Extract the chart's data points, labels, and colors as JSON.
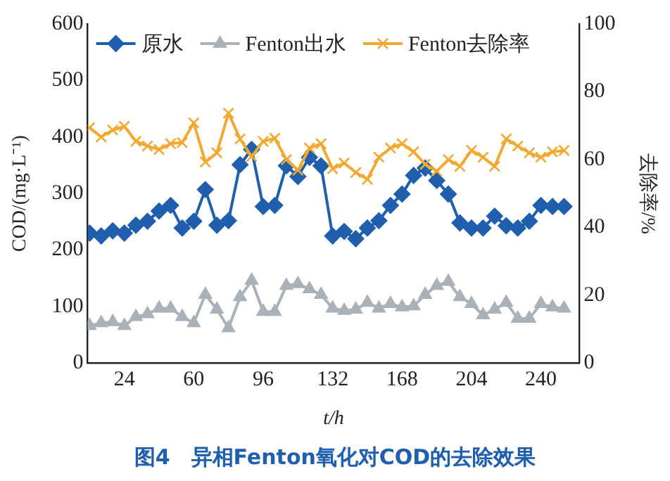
{
  "chart_data": {
    "type": "line",
    "xlabel": "t/h",
    "ylabel": "COD/(mg·L⁻¹)",
    "y2label": "去除率/%",
    "x": [
      6,
      12,
      18,
      24,
      30,
      36,
      42,
      48,
      54,
      60,
      66,
      72,
      78,
      84,
      90,
      96,
      102,
      108,
      114,
      120,
      126,
      132,
      138,
      144,
      150,
      156,
      162,
      168,
      174,
      180,
      186,
      192,
      198,
      204,
      210,
      216,
      222,
      228,
      234,
      240,
      246,
      252
    ],
    "series": [
      {
        "name": "原水",
        "color": "#1f5fad",
        "marker": "diamond",
        "values": [
          230,
          225,
          234,
          230,
          244,
          251,
          269,
          279,
          239,
          251,
          307,
          244,
          252,
          351,
          378,
          277,
          279,
          349,
          330,
          364,
          349,
          225,
          233,
          220,
          239,
          252,
          279,
          299,
          332,
          345,
          323,
          299,
          248,
          239,
          239,
          260,
          243,
          239,
          251,
          279,
          277,
          277
        ]
      },
      {
        "name": "Fenton出水",
        "color": "#aab1b8",
        "marker": "triangle",
        "values": [
          66,
          71,
          73,
          66,
          82,
          87,
          97,
          97,
          82,
          71,
          121,
          95,
          62,
          117,
          146,
          91,
          91,
          137,
          140,
          131,
          121,
          97,
          93,
          95,
          107,
          97,
          105,
          99,
          101,
          121,
          137,
          144,
          117,
          105,
          85,
          95,
          107,
          79,
          79,
          105,
          99,
          97
        ]
      },
      {
        "name": "Fenton去除率",
        "color": "#f2a933",
        "marker": "cross",
        "axis": "y2",
        "values": [
          69.4,
          66.7,
          68.7,
          69.8,
          65.4,
          64.0,
          63.0,
          64.7,
          65.0,
          70.8,
          59.3,
          62.0,
          73.7,
          66.1,
          60.9,
          65.4,
          66.3,
          60.0,
          56.9,
          63.4,
          64.7,
          57.3,
          59.0,
          56.2,
          54.2,
          60.7,
          63.4,
          64.7,
          62.3,
          58.6,
          56.6,
          60.0,
          58.0,
          62.7,
          60.7,
          58.0,
          66.1,
          64.0,
          62.0,
          60.7,
          62.3,
          62.7
        ]
      }
    ],
    "xlim": [
      5,
      260
    ],
    "xticks": [
      24,
      60,
      96,
      132,
      168,
      204,
      240
    ],
    "ylim": [
      0,
      600
    ],
    "yticks": [
      0,
      100,
      200,
      300,
      400,
      500,
      600
    ],
    "y2lim": [
      0,
      100
    ],
    "y2ticks": [
      0,
      20,
      40,
      60,
      80,
      100
    ],
    "grid": false,
    "legend": "top left",
    "line_style": "solid",
    "annotations": [
      "图4　异相Fenton氧化对COD的去除效果"
    ]
  }
}
